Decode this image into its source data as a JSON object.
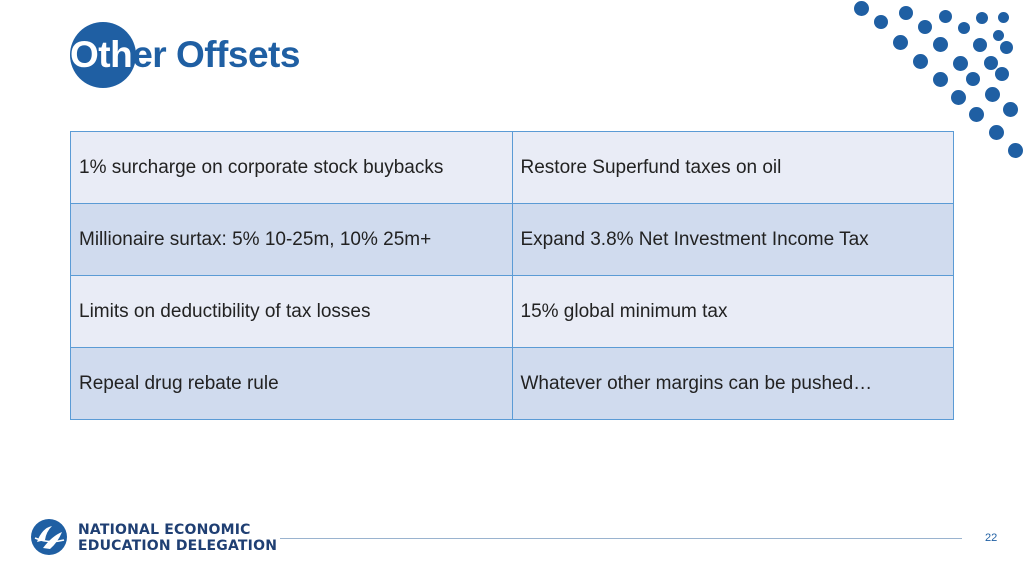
{
  "slide": {
    "title_highlight": "Oth",
    "title_rest": "er Offsets",
    "rows": [
      [
        "1% surcharge on corporate stock buybacks",
        "Restore Superfund taxes on oil"
      ],
      [
        "Millionaire surtax: 5% 10-25m, 10% 25m+",
        "Expand 3.8% Net Investment Income Tax"
      ],
      [
        "Limits on deductibility of tax losses",
        "15% global minimum tax"
      ],
      [
        "Repeal drug rebate rule",
        "Whatever other margins can be pushed…"
      ]
    ]
  },
  "footer": {
    "logo_line1": "NATIONAL ECONOMIC",
    "logo_line2": "EDUCATION DELEGATION",
    "page_number": "22"
  },
  "colors": {
    "brand_blue": "#1f5fa3",
    "row_light": "#e9ecf6",
    "row_dark": "#d0dbee",
    "border": "#5b9bd5"
  }
}
